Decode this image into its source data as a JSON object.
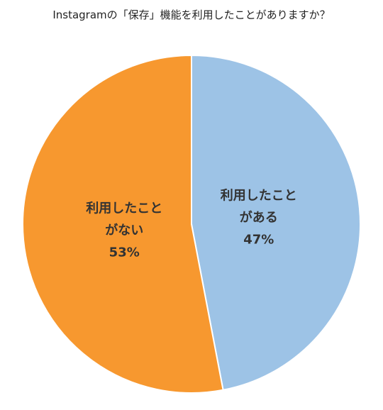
{
  "chart_data": {
    "type": "pie",
    "title": "Instagramの「保存」機能を利用したことがありますか？",
    "categories": [
      "利用したことがある",
      "利用したことがない"
    ],
    "values": [
      47,
      53
    ],
    "value_labels": [
      "47%",
      "53%"
    ],
    "colors": [
      "#9dc3e6",
      "#f7982f"
    ]
  }
}
